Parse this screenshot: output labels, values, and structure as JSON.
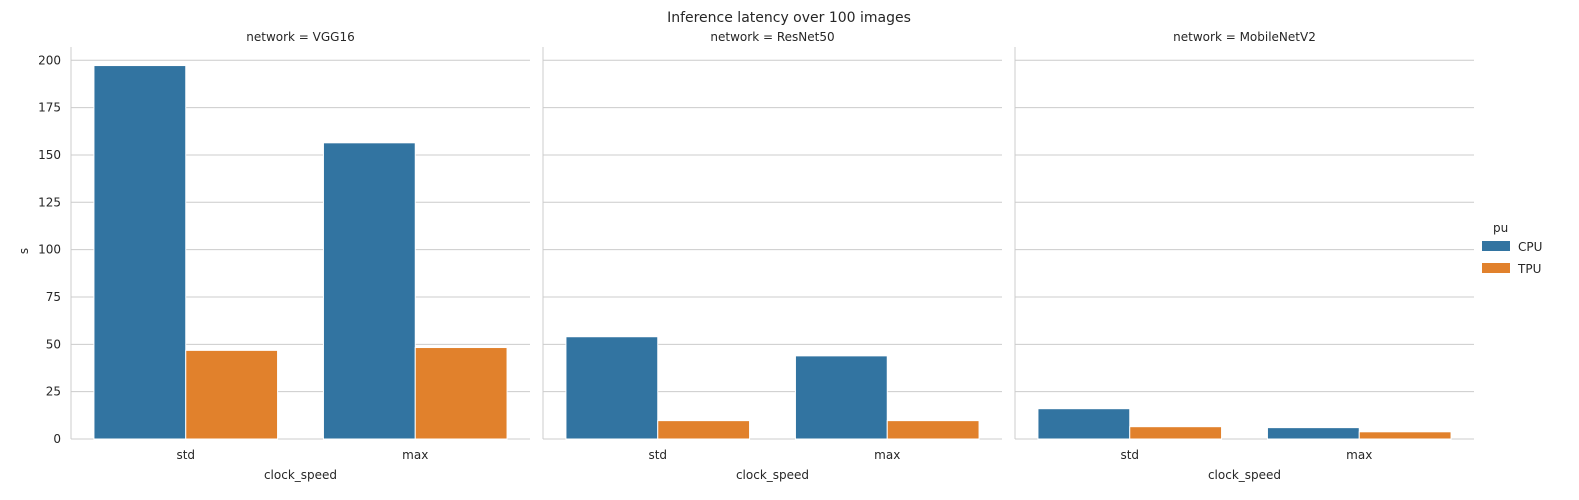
{
  "chart_data": {
    "type": "bar",
    "title": "Inference latency over 100 images",
    "xlabel": "clock_speed",
    "ylabel": "s",
    "ylim": [
      0,
      207
    ],
    "yticks": [
      0,
      25,
      50,
      75,
      100,
      125,
      150,
      175,
      200
    ],
    "categories": [
      "std",
      "max"
    ],
    "facet_variable": "network",
    "legend": {
      "title": "pu",
      "placement": "right"
    },
    "colors": {
      "CPU": "#3274a1",
      "TPU": "#e1812c"
    },
    "grid": true,
    "facets": [
      {
        "title": "network = VGG16",
        "series": [
          {
            "name": "CPU",
            "values": [
              197.2,
              156.4
            ]
          },
          {
            "name": "TPU",
            "values": [
              46.8,
              48.3
            ]
          }
        ]
      },
      {
        "title": "network = ResNet50",
        "series": [
          {
            "name": "CPU",
            "values": [
              54.0,
              43.9
            ]
          },
          {
            "name": "TPU",
            "values": [
              9.7,
              9.7
            ]
          }
        ]
      },
      {
        "title": "network = MobileNetV2",
        "series": [
          {
            "name": "CPU",
            "values": [
              16.0,
              6.0
            ]
          },
          {
            "name": "TPU",
            "values": [
              6.5,
              3.8
            ]
          }
        ]
      }
    ]
  }
}
